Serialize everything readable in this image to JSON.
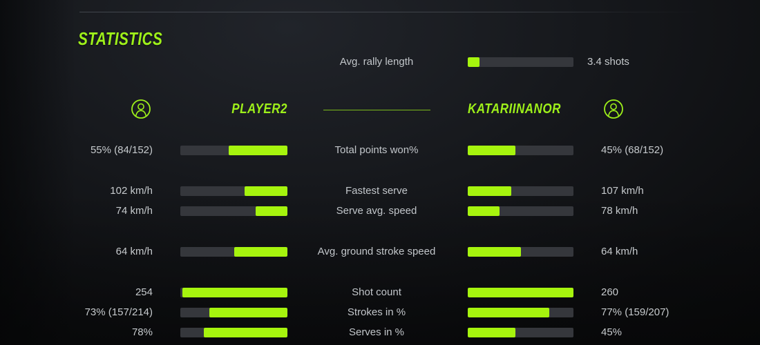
{
  "colors": {
    "accent": "#9ef01a",
    "accent-bar": "#a6f40e",
    "track": "#35373c"
  },
  "header": {
    "title": "STATISTICS"
  },
  "rally": {
    "label": "Avg. rally length",
    "value": "3.4 shots",
    "pct": 11
  },
  "players": {
    "left": {
      "name": "PLAYER2"
    },
    "right": {
      "name": "KATARIINANOR"
    }
  },
  "rows": [
    {
      "label": "Total points won%",
      "left_value": "55% (84/152)",
      "right_value": "45% (68/152)",
      "left_pct": 55,
      "right_pct": 45
    },
    {
      "label": "Fastest serve",
      "left_value": "102 km/h",
      "right_value": "107 km/h",
      "left_pct": 40,
      "right_pct": 41
    },
    {
      "label": "Serve avg. speed",
      "left_value": "74 km/h",
      "right_value": "78 km/h",
      "left_pct": 30,
      "right_pct": 30
    },
    {
      "label": "Avg. ground stroke speed",
      "left_value": "64 km/h",
      "right_value": "64 km/h",
      "left_pct": 50,
      "right_pct": 50
    },
    {
      "label": "Shot count",
      "left_value": "254",
      "right_value": "260",
      "left_pct": 98,
      "right_pct": 100
    },
    {
      "label": "Strokes in %",
      "left_value": "73% (157/214)",
      "right_value": "77% (159/207)",
      "left_pct": 73,
      "right_pct": 77
    },
    {
      "label": "Serves in %",
      "left_value": "78%",
      "right_value": "45%",
      "left_pct": 78,
      "right_pct": 45
    }
  ]
}
